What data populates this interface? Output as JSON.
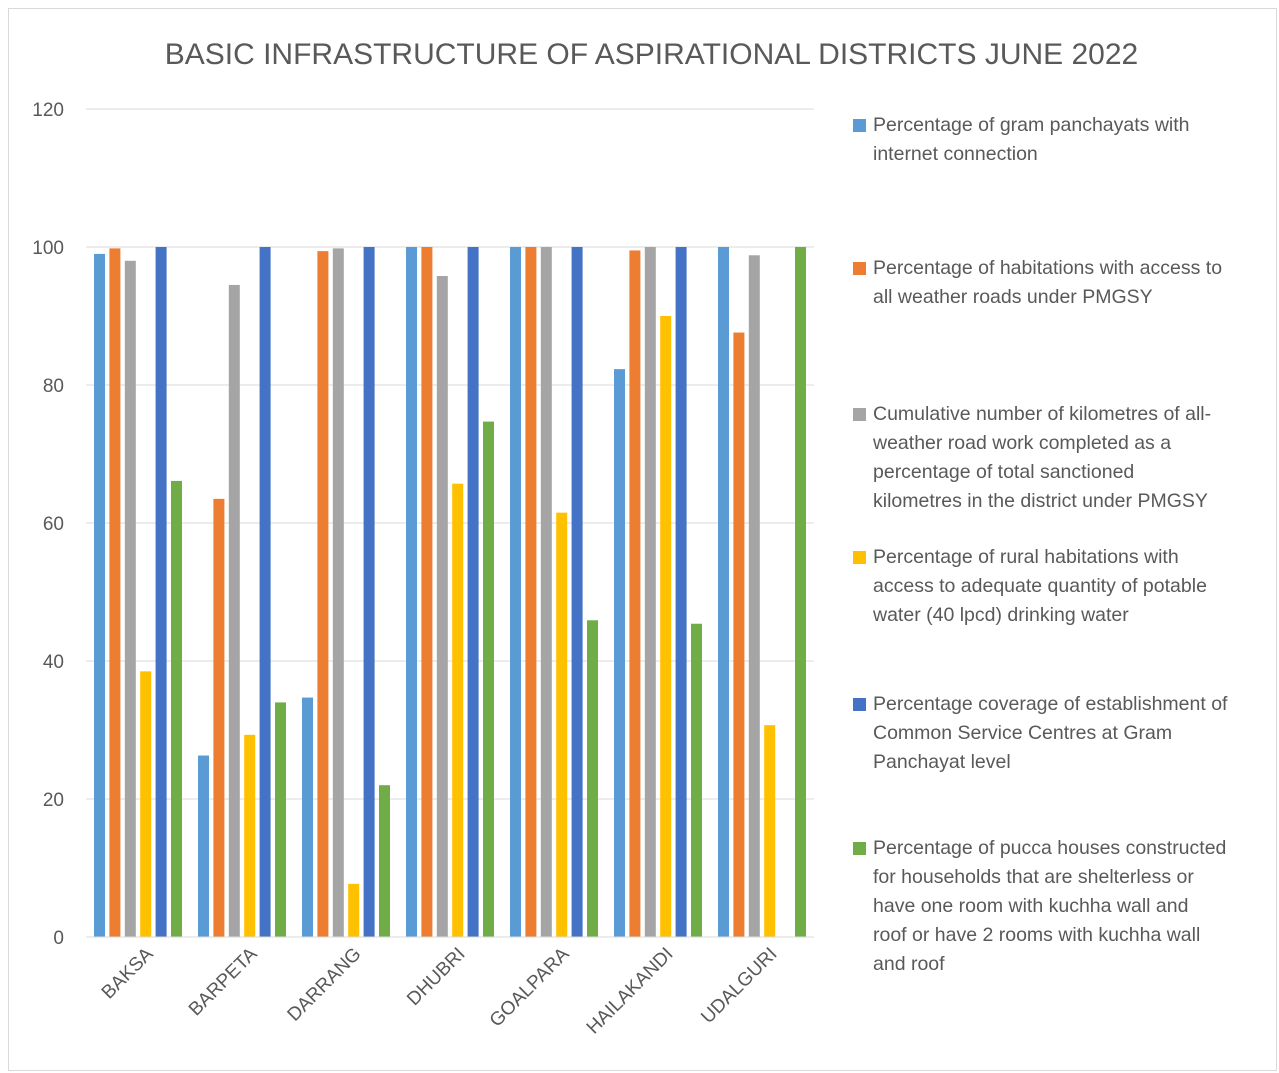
{
  "chart_data": {
    "type": "bar",
    "title": "BASIC INFRASTRUCTURE OF ASPIRATIONAL DISTRICTS JUNE 2022",
    "categories": [
      "BAKSA",
      "BARPETA",
      "DARRANG",
      "DHUBRI",
      "GOALPARA",
      "HAILAKANDI",
      "UDALGURI"
    ],
    "ylim": [
      0,
      120
    ],
    "yticks": [
      "0",
      "20",
      "40",
      "60",
      "80",
      "100",
      "120"
    ],
    "grid": true,
    "legend_position": "right",
    "series": [
      {
        "name": "Percentage of gram panchayats with internet connection",
        "color": "#5b9bd5",
        "values": [
          99,
          26.3,
          34.7,
          100,
          100,
          82.3,
          100
        ]
      },
      {
        "name": "Percentage of habitations with access to all weather roads under PMGSY",
        "color": "#ed7d31",
        "values": [
          99.8,
          63.5,
          99.4,
          100,
          100,
          99.5,
          87.6
        ]
      },
      {
        "name": "Cumulative number of kilometres of all-weather road work completed as a percentage of total sanctioned kilometres in the district under PMGSY",
        "color": "#a5a5a5",
        "values": [
          98,
          94.5,
          99.8,
          95.8,
          100,
          100,
          98.8
        ]
      },
      {
        "name": "Percentage of rural habitations with access to adequate quantity of potable water (40 lpcd) drinking water",
        "color": "#ffc000",
        "values": [
          38.5,
          29.3,
          7.7,
          65.7,
          61.5,
          90,
          30.7
        ]
      },
      {
        "name": "Percentage coverage of establishment of Common Service Centres at Gram Panchayat level",
        "color": "#4472c4",
        "values": [
          100,
          100,
          100,
          100,
          100,
          100,
          0
        ]
      },
      {
        "name": "Percentage of pucca houses constructed for households that are shelterless or have one room with kuchha wall and roof or have 2 rooms with kuchha wall and roof",
        "color": "#70ad47",
        "values": [
          66.1,
          34,
          22,
          74.7,
          45.9,
          45.4,
          100
        ]
      }
    ]
  },
  "legend_lines": [
    [
      "Percentage of gram panchayats with",
      "internet connection"
    ],
    [
      "Percentage of habitations with access to",
      "all weather roads under PMGSY"
    ],
    [
      "Cumulative number of kilometres of all-",
      "weather road work completed as a",
      "percentage of total sanctioned",
      "kilometres in the district under PMGSY"
    ],
    [
      "Percentage of rural habitations with",
      "access to adequate quantity of potable",
      "water (40 lpcd) drinking water"
    ],
    [
      "Percentage coverage of establishment of",
      "Common Service Centres at Gram",
      "Panchayat level"
    ],
    [
      "Percentage of pucca houses constructed",
      "for households that are shelterless or",
      "have one room with kuchha wall and",
      "roof or have 2 rooms with kuchha wall",
      "and roof"
    ]
  ]
}
